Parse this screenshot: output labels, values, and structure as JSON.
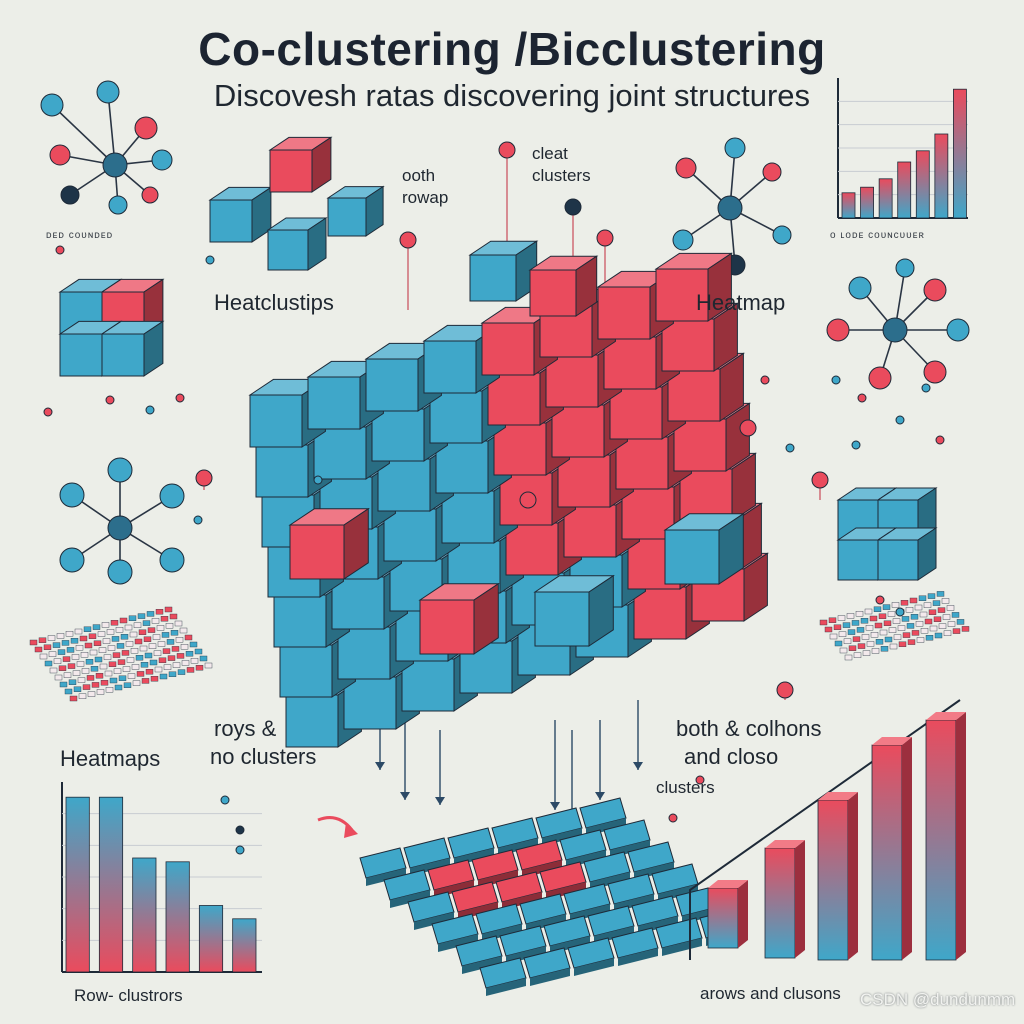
{
  "header": {
    "title": "Co-clustering /Bicclustering",
    "subtitle": "Discovesh ratas discovering joint structures"
  },
  "labels": {
    "both_rowap_1": "ᴏoth",
    "both_rowap_2": "rowap",
    "cleat_1": "ᴄleat",
    "cleat_2": "clusters",
    "heatclustips": "Heatclustips",
    "heatmap": "Heatmap",
    "heatmaps": "Heatmaps",
    "roys_1": "roys &",
    "roys_2": "no clusters",
    "both_colhons_1": "both & colhons",
    "both_colhons_2": "and closo",
    "both_colhons_3": "clusters",
    "row_clusters": "Roᴡ- clustrors",
    "arows_clusters": "arows and clusons",
    "small_left_caption": "ᴅᴇᴅ ᴄᴏᴜɴᴅᴇᴅ",
    "small_right_caption": "ᴏ ʟᴏᴅᴇ ᴄᴏᴜɴᴄᴜᴜᴇʀ"
  },
  "watermark": "CSDN @dundunmm",
  "colors": {
    "blue": "#3fa7c9",
    "red": "#ea4b5d",
    "navy": "#1e3448",
    "background": "#eceee8"
  },
  "icons": {
    "network": "network-graph-icon",
    "cube": "cube-cluster-icon",
    "heatmap": "heatmap-grid-icon",
    "chart": "bar-chart-icon"
  }
}
